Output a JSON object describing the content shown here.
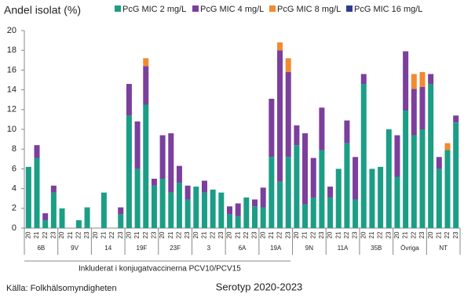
{
  "chart_data": {
    "type": "stacked-bar",
    "title": "Andel isolat (%)",
    "x_label": "Serotyp 2020-2023",
    "source": "Källa: Folkhälsomyndigheten",
    "annotation": "Inkluderat i konjugatvaccinerna PCV10/PCV15",
    "groups": [
      "6B",
      "9V",
      "14",
      "19F",
      "23F",
      "3",
      "6A",
      "19A",
      "9N",
      "11A",
      "35B",
      "Övriga",
      "NT"
    ],
    "categories": [
      "20",
      "21",
      "22",
      "23",
      "20",
      "21",
      "22",
      "23",
      "20",
      "21",
      "22",
      "23",
      "20",
      "21",
      "22",
      "23",
      "20",
      "21",
      "22",
      "23",
      "20",
      "21",
      "22",
      "23",
      "20",
      "21",
      "22",
      "23",
      "20",
      "21",
      "22",
      "23",
      "20",
      "21",
      "22",
      "23",
      "20",
      "21",
      "22",
      "23",
      "20",
      "21",
      "22",
      "23",
      "20",
      "21",
      "22",
      "23",
      "20",
      "21",
      "22",
      "23"
    ],
    "series": [
      {
        "name": "PcG MIC 2 mg/L",
        "color": "#1b9e85",
        "values": [
          6.2,
          7.1,
          0.8,
          3.6,
          2.0,
          0,
          0.8,
          2.1,
          0,
          3.6,
          0,
          1.4,
          11.4,
          6.0,
          12.5,
          4.3,
          5.0,
          3.6,
          4.6,
          2.9,
          4.2,
          3.6,
          3.9,
          3.6,
          1.4,
          1.2,
          3.1,
          2.2,
          2.1,
          7.2,
          4.7,
          7.2,
          8.4,
          2.4,
          3.1,
          7.9,
          3.1,
          6.0,
          8.6,
          2.9,
          14.6,
          6.0,
          6.2,
          10.0,
          5.2,
          11.9,
          9.4,
          10.0,
          14.6,
          6.0,
          7.9,
          10.7
        ]
      },
      {
        "name": "PcG MIC 4 mg/L",
        "color": "#7b3f9c",
        "values": [
          0,
          1.3,
          0.7,
          0.7,
          0,
          0,
          0,
          0,
          0,
          0,
          0,
          0.7,
          3.2,
          4.8,
          3.9,
          0.7,
          4.4,
          6.0,
          1.7,
          1.4,
          0,
          1.2,
          0,
          0,
          0.8,
          1.3,
          0,
          0.7,
          2.0,
          5.9,
          13.3,
          8.6,
          2.0,
          7.2,
          4.0,
          4.3,
          1.1,
          0,
          2.3,
          4.3,
          1.0,
          0,
          0,
          0,
          4.2,
          6.0,
          4.7,
          4.3,
          1.0,
          1.2,
          0,
          0.7
        ]
      },
      {
        "name": "PcG MIC 8 mg/L",
        "color": "#f28a30",
        "values": [
          0,
          0,
          0,
          0,
          0,
          0,
          0,
          0,
          0,
          0,
          0,
          0,
          0,
          0,
          0.8,
          0,
          0,
          0,
          0,
          0,
          0,
          0,
          0,
          0,
          0,
          0,
          0,
          0,
          0,
          0,
          0.8,
          1.4,
          0,
          0,
          0,
          0,
          0,
          0,
          0,
          0,
          0,
          0,
          0,
          0,
          0,
          0,
          1.5,
          1.5,
          0,
          0,
          0.7,
          0
        ]
      },
      {
        "name": "PcG MIC 16 mg/L",
        "color": "#2e3b8e",
        "values": [
          0,
          0,
          0,
          0,
          0,
          0,
          0,
          0,
          0,
          0,
          0,
          0,
          0,
          0,
          0,
          0,
          0,
          0,
          0,
          0,
          0,
          0,
          0,
          0,
          0,
          0,
          0,
          0,
          0,
          0,
          0,
          0,
          0,
          0,
          0,
          0,
          0,
          0,
          0,
          0,
          0,
          0,
          0,
          0,
          0,
          0,
          0,
          0,
          0,
          0,
          0,
          0
        ]
      }
    ],
    "ylim": [
      0,
      20
    ],
    "yticks": [
      0,
      2,
      4,
      6,
      8,
      10,
      12,
      14,
      16,
      18,
      20
    ]
  }
}
